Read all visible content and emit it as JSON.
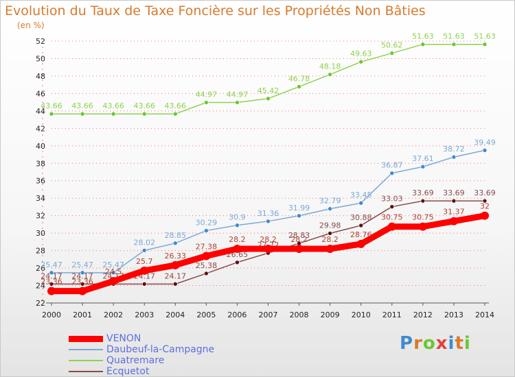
{
  "header": {
    "title": "Evolution du Taux de Taxe Foncière sur les Propriétés Non Bâties",
    "unit": "(en %)"
  },
  "logo": {
    "text": "Proxiti"
  },
  "colors": {
    "title": "#d77a2c",
    "legend_text": "#5e6fdd",
    "grid": "#ff6b6b"
  },
  "chart_data": {
    "type": "line",
    "title": "Evolution du Taux de Taxe Foncière sur les Propriétés Non Bâties",
    "ylabel": "(en %)",
    "xlabel": "",
    "x": [
      2000,
      2001,
      2002,
      2003,
      2004,
      2005,
      2006,
      2007,
      2008,
      2009,
      2010,
      2011,
      2012,
      2013,
      2014
    ],
    "ylim": [
      22,
      52
    ],
    "yticks": [
      22,
      24,
      26,
      28,
      30,
      32,
      34,
      36,
      38,
      40,
      42,
      44,
      46,
      48,
      50,
      52
    ],
    "grid": "horizontal dotted",
    "legend": "bottom-left",
    "series": [
      {
        "name": "Quatremare",
        "color": "#8fd14f",
        "dot": "#6cc733",
        "width": 1.5,
        "values": [
          43.66,
          43.66,
          43.66,
          43.66,
          43.66,
          44.97,
          44.97,
          45.42,
          46.78,
          48.18,
          49.63,
          50.62,
          51.63,
          51.63,
          51.63
        ],
        "labels": [
          "43.66",
          "43.66",
          "43.66",
          "43.66",
          "43.66",
          "44.97",
          "44.97",
          "45.42",
          "46.78",
          "48.18",
          "49.63",
          "50.62",
          "51.63",
          "51.63",
          "51.63"
        ]
      },
      {
        "name": "Daubeuf-la-Campagne",
        "color": "#7aa9d6",
        "dot": "#3e8ad0",
        "width": 1.5,
        "values": [
          25.47,
          25.47,
          25.47,
          28.02,
          28.85,
          30.29,
          30.9,
          31.36,
          31.99,
          32.79,
          33.45,
          36.87,
          37.61,
          38.72,
          39.49
        ],
        "labels": [
          "25.47",
          "25.47",
          "25.47",
          "28.02",
          "28.85",
          "30.29",
          "30.9",
          "31.36",
          "31.99",
          "32.79",
          "33.45",
          "36.87",
          "37.61",
          "38.72",
          "39.49"
        ]
      },
      {
        "name": "Ecquetot",
        "color": "#8a4a4a",
        "dot": "#5c1111",
        "width": 1.5,
        "values": [
          24.17,
          24.17,
          24.17,
          24.17,
          24.17,
          25.38,
          26.65,
          27.72,
          28.83,
          29.98,
          30.88,
          33.03,
          33.69,
          33.69,
          33.69
        ],
        "labels": [
          "24.17",
          "24.17",
          "24.17",
          "24.17",
          "24.17",
          "25.38",
          "26.65",
          "27.72",
          "28.83",
          "29.98",
          "30.88",
          "33.03",
          "33.69",
          "33.69",
          "33.69"
        ]
      },
      {
        "name": "VENON",
        "color": "#ff0000",
        "dot": "#ff0000",
        "width": 9,
        "values": [
          23.36,
          23.36,
          24.5,
          25.7,
          26.33,
          27.38,
          28.2,
          28.2,
          28.2,
          28.2,
          28.76,
          30.75,
          30.75,
          31.37,
          32
        ],
        "labels": [
          "23.36",
          "23.36",
          "24.5",
          "25.7",
          "26.33",
          "27.38",
          "28.2",
          "28.2",
          "28.2",
          "28.2",
          "28.76",
          "30.75",
          "30.75",
          "31.37",
          "32"
        ]
      }
    ]
  }
}
